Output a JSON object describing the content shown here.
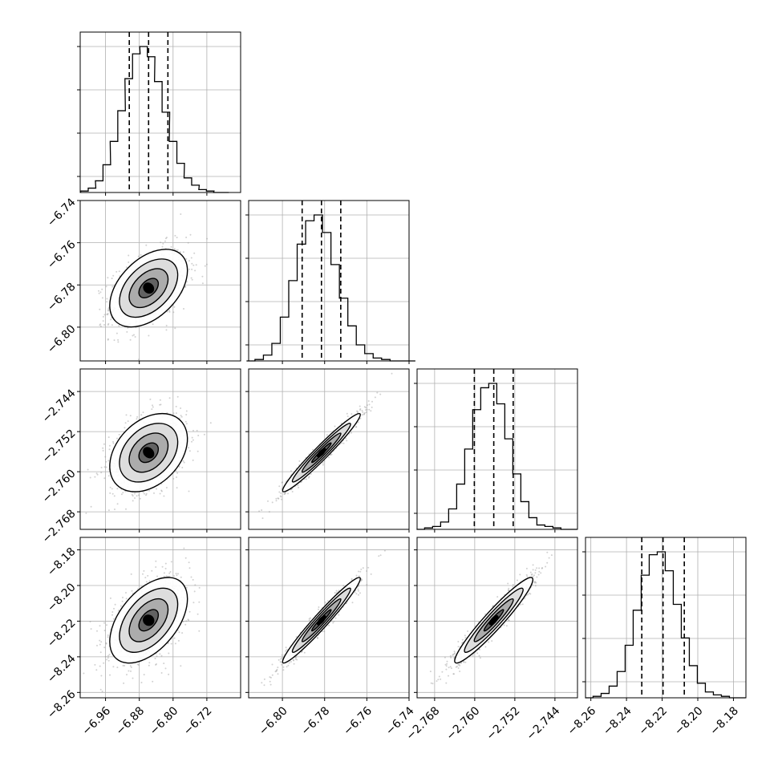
{
  "chart_data": {
    "type": "corner",
    "grid": true,
    "colors": {
      "axes": "#000000",
      "grid": "#b0b0b0",
      "histogram": "#000000",
      "quantile_lines": "#000000",
      "points": "#9a9a9a",
      "density": "#000000"
    },
    "parameters": [
      {
        "index": 0,
        "range": [
          -7.02,
          -6.64
        ],
        "ticks": [
          -6.96,
          -6.88,
          -6.8,
          -6.72
        ],
        "tick_labels": [
          "−6.96",
          "−6.88",
          "−6.80",
          "−6.72"
        ],
        "mean": -6.858,
        "sigma": 0.046
      },
      {
        "index": 1,
        "range": [
          -6.816,
          -6.74
        ],
        "ticks": [
          -6.8,
          -6.78,
          -6.76,
          -6.74
        ],
        "tick_labels": [
          "−6.80",
          "−6.78",
          "−6.76",
          "−6.74"
        ],
        "mean": -6.7815,
        "sigma": 0.0092
      },
      {
        "index": 2,
        "range": [
          -2.7715,
          -2.7395
        ],
        "ticks": [
          -2.768,
          -2.76,
          -2.752,
          -2.744
        ],
        "tick_labels": [
          "−2.768",
          "−2.760",
          "−2.752",
          "−2.744"
        ],
        "mean": -2.7562,
        "sigma": 0.0039
      },
      {
        "index": 3,
        "range": [
          -8.263,
          -8.173
        ],
        "ticks": [
          -8.26,
          -8.24,
          -8.22,
          -8.2,
          -8.18
        ],
        "tick_labels": [
          "−8.26",
          "−8.24",
          "−8.22",
          "−8.20",
          "−8.18"
        ],
        "mean": -8.2195,
        "sigma": 0.012
      }
    ],
    "correlations": [
      {
        "pair": [
          0,
          1
        ],
        "rho": 0.45
      },
      {
        "pair": [
          0,
          2
        ],
        "rho": 0.35
      },
      {
        "pair": [
          0,
          3
        ],
        "rho": 0.5
      },
      {
        "pair": [
          1,
          2
        ],
        "rho": 0.97
      },
      {
        "pair": [
          1,
          3
        ],
        "rho": 0.97
      },
      {
        "pair": [
          2,
          3
        ],
        "rho": 0.95
      }
    ],
    "quantiles": [
      0.16,
      0.5,
      0.84
    ],
    "contour_levels_sigma": [
      0.5,
      1.0,
      1.5,
      2.0
    ],
    "histograms": [
      {
        "param": 0,
        "bins": 20,
        "x": [
          -7.01,
          -6.992,
          -6.975,
          -6.957,
          -6.94,
          -6.922,
          -6.905,
          -6.887,
          -6.87,
          -6.852,
          -6.835,
          -6.817,
          -6.8,
          -6.782,
          -6.765,
          -6.747,
          -6.73,
          -6.712,
          -6.695,
          -6.677
        ],
        "counts": [
          0.01,
          0.03,
          0.08,
          0.19,
          0.35,
          0.56,
          0.78,
          0.95,
          1.0,
          0.93,
          0.76,
          0.55,
          0.35,
          0.2,
          0.1,
          0.05,
          0.02,
          0.01,
          0.0,
          0.0
        ]
      },
      {
        "param": 1,
        "bins": 20,
        "x": [
          -6.815,
          -6.811,
          -6.807,
          -6.803,
          -6.799,
          -6.795,
          -6.791,
          -6.787,
          -6.783,
          -6.779,
          -6.775,
          -6.771,
          -6.767,
          -6.763,
          -6.759,
          -6.755,
          -6.751,
          -6.747,
          -6.743,
          -6.739
        ],
        "counts": [
          0.0,
          0.01,
          0.04,
          0.12,
          0.3,
          0.55,
          0.8,
          0.96,
          1.0,
          0.88,
          0.66,
          0.43,
          0.24,
          0.11,
          0.05,
          0.02,
          0.01,
          0.0,
          0.0,
          0.0
        ]
      },
      {
        "param": 2,
        "bins": 20,
        "x": [
          -2.7708,
          -2.7692,
          -2.7676,
          -2.766,
          -2.7644,
          -2.7628,
          -2.7612,
          -2.7596,
          -2.758,
          -2.7564,
          -2.7548,
          -2.7532,
          -2.7516,
          -2.75,
          -2.7484,
          -2.7468,
          -2.7452,
          -2.7436,
          -2.742,
          -2.7404
        ],
        "counts": [
          0.0,
          0.01,
          0.02,
          0.05,
          0.14,
          0.31,
          0.55,
          0.82,
          0.97,
          1.0,
          0.86,
          0.62,
          0.38,
          0.19,
          0.08,
          0.03,
          0.02,
          0.01,
          0.0,
          0.0
        ]
      },
      {
        "param": 3,
        "bins": 20,
        "x": [
          -8.261,
          -8.2565,
          -8.252,
          -8.2475,
          -8.243,
          -8.2385,
          -8.234,
          -8.2295,
          -8.225,
          -8.2205,
          -8.216,
          -8.2115,
          -8.207,
          -8.2025,
          -8.198,
          -8.1935,
          -8.189,
          -8.1845,
          -8.18,
          -8.1755
        ],
        "counts": [
          0.0,
          0.01,
          0.03,
          0.08,
          0.18,
          0.36,
          0.6,
          0.84,
          0.98,
          1.0,
          0.87,
          0.64,
          0.41,
          0.22,
          0.1,
          0.04,
          0.02,
          0.01,
          0.0,
          0.0
        ]
      }
    ]
  }
}
